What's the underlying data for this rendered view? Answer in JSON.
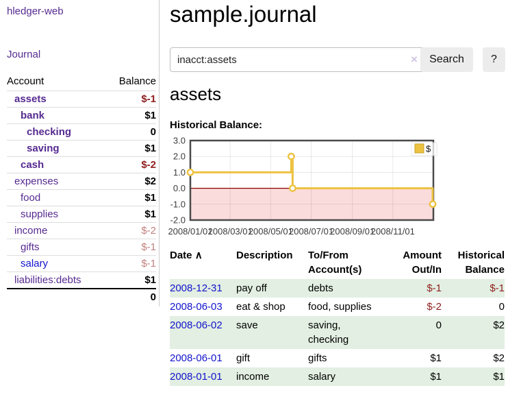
{
  "app": {
    "brand": "hledger-web"
  },
  "colors": {
    "link_purple": "#552a90",
    "link_blue": "#1212cc",
    "negative_strong": "#8f1d1d",
    "negative_soft": "#c38080",
    "row_stripe_green": "#e2efe2",
    "chart_series_yellow": "#EDC240",
    "chart_negative_fill": "#fbdcdc",
    "chart_zero_line": "#8b0000"
  },
  "sidebar": {
    "journal_link": "Journal",
    "accounts_table": {
      "headers": {
        "account": "Account",
        "balance": "Balance"
      },
      "rows": [
        {
          "name": "assets",
          "indent": 1,
          "bold": true,
          "link": "purple",
          "balance": "$-1",
          "balance_style": "neg-strong"
        },
        {
          "name": "bank",
          "indent": 2,
          "bold": true,
          "link": "purple",
          "balance": "$1",
          "balance_style": ""
        },
        {
          "name": "checking",
          "indent": 3,
          "bold": true,
          "link": "purple",
          "balance": "0",
          "balance_style": ""
        },
        {
          "name": "saving",
          "indent": 3,
          "bold": true,
          "link": "purple",
          "balance": "$1",
          "balance_style": ""
        },
        {
          "name": "cash",
          "indent": 2,
          "bold": true,
          "link": "purple",
          "balance": "$-2",
          "balance_style": "neg-strong"
        },
        {
          "name": "expenses",
          "indent": 1,
          "bold": false,
          "link": "purple",
          "balance": "$2",
          "balance_style": ""
        },
        {
          "name": "food",
          "indent": 2,
          "bold": false,
          "link": "purple",
          "balance": "$1",
          "balance_style": ""
        },
        {
          "name": "supplies",
          "indent": 2,
          "bold": false,
          "link": "purple",
          "balance": "$1",
          "balance_style": ""
        },
        {
          "name": "income",
          "indent": 1,
          "bold": false,
          "link": "purple",
          "balance": "$-2",
          "balance_style": "neg-soft"
        },
        {
          "name": "gifts",
          "indent": 2,
          "bold": false,
          "link": "purple",
          "balance": "$-1",
          "balance_style": "neg-soft"
        },
        {
          "name": "salary",
          "indent": 2,
          "bold": false,
          "link": "blue",
          "balance": "$-1",
          "balance_style": "neg-soft"
        },
        {
          "name": "liabilities:debts",
          "indent": 1,
          "bold": false,
          "link": "purple",
          "balance": "$1",
          "balance_style": "",
          "rule_after": true
        }
      ],
      "total": "0"
    }
  },
  "main": {
    "title": "sample.journal",
    "search": {
      "value": "inacct:assets",
      "clear_icon": "×",
      "button_label": "Search",
      "help_label": "?"
    },
    "section_title": "assets",
    "chart_label": "Historical Balance:"
  },
  "chart_data": {
    "type": "line",
    "step": true,
    "title": "Historical Balance",
    "xlim": [
      "2008-01-01",
      "2009-01-01"
    ],
    "ylim": [
      -2.0,
      3.0
    ],
    "y_ticks": [
      3.0,
      2.0,
      1.0,
      0.0,
      -1.0,
      -2.0
    ],
    "x_ticks": [
      "2008/01/01",
      "2008/03/01",
      "2008/05/01",
      "2008/07/01",
      "2008/09/01",
      "2008/11/01"
    ],
    "legend": {
      "position": "top-right",
      "entries": [
        "$"
      ]
    },
    "series": [
      {
        "name": "$",
        "color": "#EDC240",
        "points": [
          {
            "x": "2008-01-01",
            "y": 1
          },
          {
            "x": "2008-06-01",
            "y": 2
          },
          {
            "x": "2008-06-03",
            "y": 0
          },
          {
            "x": "2008-12-31",
            "y": -1
          }
        ]
      }
    ],
    "negative_region_fill": "#fbdcdc",
    "zero_line_color": "#8b0000",
    "grid": true
  },
  "transactions": {
    "headers": {
      "date": "Date",
      "sort_icon": "∧",
      "description": "Description",
      "accounts": "To/From Account(s)",
      "amount": "Amount Out/In",
      "balance": "Historical Balance"
    },
    "rows": [
      {
        "date": "2008-12-31",
        "description": "pay off",
        "accounts": "debts",
        "amount": "$-1",
        "amount_neg": true,
        "balance": "$-1",
        "balance_neg": true,
        "shade": true
      },
      {
        "date": "2008-06-03",
        "description": "eat & shop",
        "accounts": "food, supplies",
        "amount": "$-2",
        "amount_neg": true,
        "balance": "0",
        "balance_neg": false,
        "shade": false
      },
      {
        "date": "2008-06-02",
        "description": "save",
        "accounts": "saving, checking",
        "amount": "0",
        "amount_neg": false,
        "balance": "$2",
        "balance_neg": false,
        "shade": true
      },
      {
        "date": "2008-06-01",
        "description": "gift",
        "accounts": "gifts",
        "amount": "$1",
        "amount_neg": false,
        "balance": "$2",
        "balance_neg": false,
        "shade": false
      },
      {
        "date": "2008-01-01",
        "description": "income",
        "accounts": "salary",
        "amount": "$1",
        "amount_neg": false,
        "balance": "$1",
        "balance_neg": false,
        "shade": true
      }
    ]
  }
}
